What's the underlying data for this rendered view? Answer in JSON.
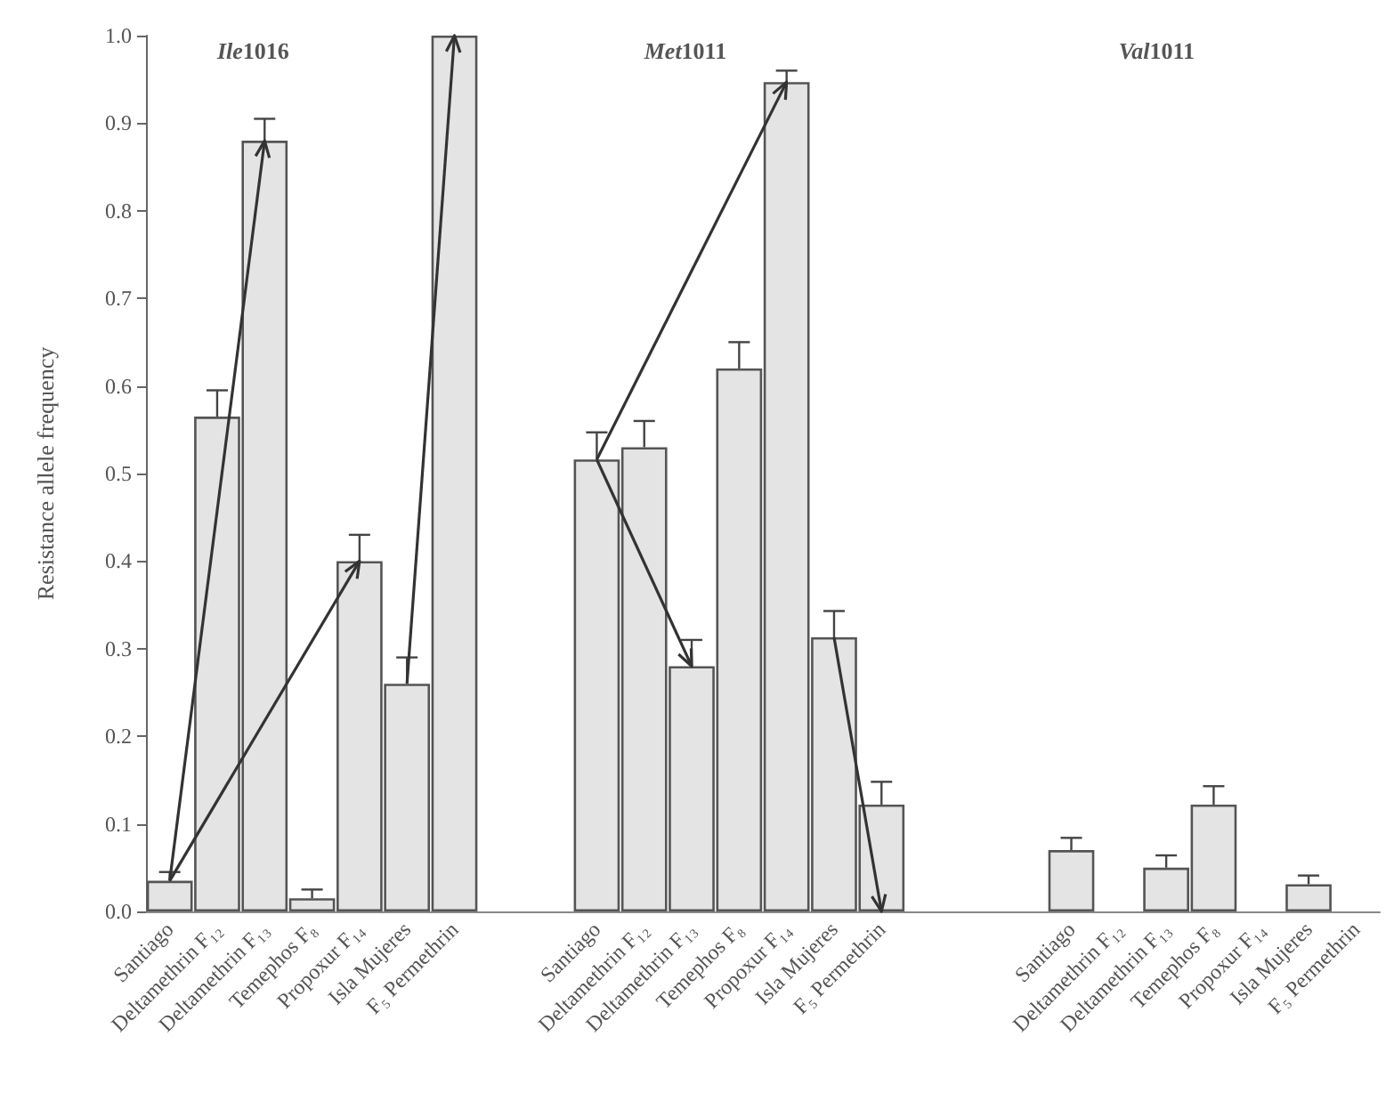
{
  "chart_data": {
    "type": "bar",
    "ylabel": "Resistance allele frequency",
    "annotations": [
      "Ile1016",
      "Met1011",
      "Val1011"
    ],
    "categories": [
      "Santiago",
      "Deltamethrin F₁₂",
      "Deltamethrin F₁₃",
      "Temephos F₈",
      "Propoxur F₁₄",
      "Isla Mujeres",
      "F₅ Permethrin",
      null,
      null,
      "Santiago",
      "Deltamethrin F₁₂",
      "Deltamethrin F₁₃",
      "Temephos F₈",
      "Propoxur F₁₄",
      "Isla Mujeres",
      "F₅ Permethrin",
      null,
      null,
      null,
      "Santiago",
      "Deltamethrin F₁₂",
      "Deltamethrin F₁₃",
      "Temephos F₈",
      "Propoxur F₁₄",
      "Isla Mujeres",
      "F₅ Permethrin"
    ],
    "values": [
      0.035,
      0.565,
      0.88,
      0.015,
      0.4,
      0.26,
      1.0,
      null,
      null,
      0.516,
      0.53,
      0.28,
      0.62,
      0.947,
      0.313,
      0.122,
      null,
      null,
      null,
      0.07,
      null,
      0.05,
      0.122,
      null,
      0.031,
      null
    ],
    "errors": [
      [
        0.035,
        0.045
      ],
      [
        0.565,
        0.595
      ],
      [
        0.88,
        0.905
      ],
      [
        0.015,
        0.025
      ],
      [
        0.4,
        0.43
      ],
      [
        0.26,
        0.29
      ],
      null,
      null,
      null,
      [
        0.516,
        0.547
      ],
      [
        0.53,
        0.56
      ],
      [
        0.28,
        0.31
      ],
      [
        0.62,
        0.65
      ],
      [
        0.947,
        0.96
      ],
      [
        0.313,
        0.343
      ],
      [
        0.122,
        0.148
      ],
      null,
      null,
      null,
      [
        0.07,
        0.084
      ],
      null,
      [
        0.05,
        0.064
      ],
      [
        0.122,
        0.143
      ],
      null,
      [
        0.031,
        0.041
      ],
      null
    ],
    "color": "#e4e4e4",
    "ylim": [
      0,
      1.0
    ],
    "yticks": [
      {
        "value": 0,
        "label": "0.0"
      },
      0.1,
      0.2,
      0.3,
      0.4,
      0.5,
      0.6,
      0.7,
      0.8,
      0.9,
      {
        "value": 1.0,
        "label": "1.0"
      }
    ]
  }
}
